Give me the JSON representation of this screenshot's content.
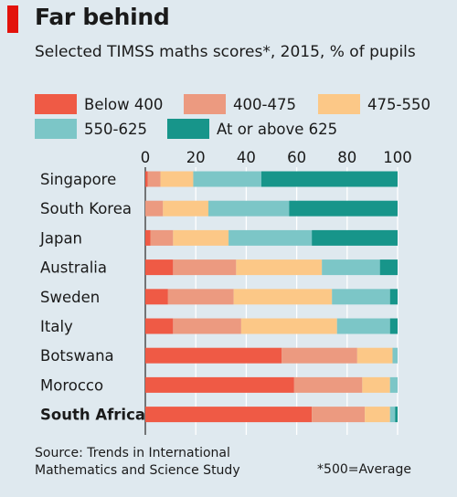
{
  "title": "Far behind",
  "subtitle": "Selected TIMSS maths scores*, 2015, % of pupils",
  "source_lines": [
    "Source: Trends in International",
    "Mathematics and Science Study"
  ],
  "footnote": "*500=Average",
  "colors": {
    "panel": "#dfe9ef",
    "accent": "#e3120b",
    "gridline": "#ffffff",
    "axis": "#333333",
    "series": [
      "#ef5a45",
      "#ec9a80",
      "#fcc887",
      "#7cc6c7",
      "#17958a"
    ]
  },
  "chart_data": {
    "type": "bar",
    "orientation": "horizontal",
    "stacked": true,
    "xlim": [
      0,
      100
    ],
    "ticks": [
      0,
      20,
      40,
      60,
      80,
      100
    ],
    "tick_labels": [
      "0",
      "20",
      "40",
      "60",
      "80",
      "100"
    ],
    "grid": true,
    "legend_position": "top",
    "categories": [
      "Singapore",
      "South Korea",
      "Japan",
      "Australia",
      "Sweden",
      "Italy",
      "Botswana",
      "Morocco",
      "South Africa"
    ],
    "highlight": "South Africa",
    "series": [
      {
        "name": "Below 400",
        "values": [
          1,
          0,
          2,
          11,
          9,
          11,
          54,
          59,
          66
        ]
      },
      {
        "name": "400-475",
        "values": [
          5,
          7,
          9,
          25,
          26,
          27,
          30,
          27,
          21
        ]
      },
      {
        "name": "475-550",
        "values": [
          13,
          18,
          22,
          34,
          39,
          38,
          14,
          11,
          10
        ]
      },
      {
        "name": "550-625",
        "values": [
          27,
          32,
          33,
          23,
          23,
          21,
          2,
          3,
          2
        ]
      },
      {
        "name": "At or above 625",
        "values": [
          54,
          43,
          34,
          7,
          3,
          3,
          0,
          0,
          1
        ]
      }
    ]
  }
}
